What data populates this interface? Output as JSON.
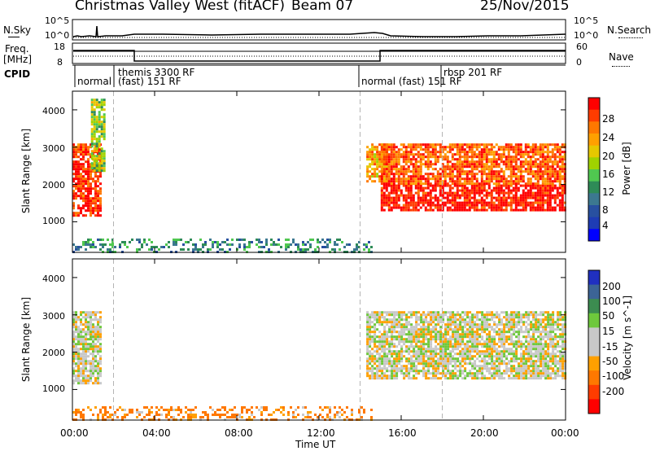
{
  "header": {
    "station": "Christmas Valley West (fitACF)",
    "beam": "Beam 07",
    "date": "25/Nov/2015"
  },
  "top_panels": {
    "nsky_label": "N.Sky",
    "nsearch_label": "N.Search",
    "noise_ticks_left": [
      "10^5",
      "10^0"
    ],
    "noise_ticks_right": [
      "10^5",
      "10^0"
    ],
    "freq_label_1": "Freq.",
    "freq_label_2": "[MHz]",
    "freq_ticks": [
      "18",
      "8"
    ],
    "nave_ticks": [
      "60",
      "0"
    ],
    "nave_label": "Nave",
    "cpid_label": "CPID",
    "cpid_segments": [
      {
        "text": "normal",
        "pos": "a"
      },
      {
        "text": "themis 3300 RF",
        "pos": "b"
      },
      {
        "text": "(fast) 151 RF",
        "pos": "c"
      },
      {
        "text": "normal (fast) 151 RF",
        "pos": "d"
      },
      {
        "text": "rbsp 201 RF",
        "pos": "e"
      }
    ]
  },
  "axes": {
    "ylabel": "Slant Range [km]",
    "xlabel": "Time UT",
    "y_ticks": [
      "4000",
      "3000",
      "2000",
      "1000"
    ],
    "x_ticks": [
      "00:00",
      "04:00",
      "08:00",
      "12:00",
      "16:00",
      "20:00",
      "00:00"
    ]
  },
  "power_colorbar": {
    "label": "Power [dB]",
    "ticks": [
      "28",
      "24",
      "20",
      "16",
      "12",
      "8",
      "4"
    ],
    "colors": [
      "#ff0000",
      "#ff3c00",
      "#ff7800",
      "#ffa000",
      "#e6c800",
      "#a0d200",
      "#50c850",
      "#2e8b57",
      "#3c7890",
      "#2850a0",
      "#1e3cb4",
      "#0000ff"
    ]
  },
  "velocity_colorbar": {
    "label": "Velocity [m s^-1]",
    "ticks": [
      "200",
      "100",
      "50",
      "15",
      "-15",
      "-50",
      "-100",
      "-200"
    ],
    "colors": [
      "#2030c0",
      "#3c6496",
      "#3c8c50",
      "#6ec83c",
      "#c8c8c8",
      "#c8c8c8",
      "#ffa000",
      "#ff7800",
      "#ff3c00",
      "#ff0000"
    ]
  },
  "chart_data": {
    "type": "heatmap",
    "title": "Christmas Valley West (fitACF) Beam 07 25/Nov/2015",
    "xlabel": "Time UT",
    "ylabel": "Slant Range [km]",
    "x_range_hours": [
      0,
      24
    ],
    "ylim": [
      180,
      4500
    ],
    "dashed_marker_hours": [
      2,
      14,
      18
    ],
    "panels": [
      {
        "name": "Power [dB]",
        "colorbar_range": [
          0,
          30
        ],
        "regions": [
          {
            "t": [
              0.0,
              1.4
            ],
            "range": [
              1200,
              3100
            ],
            "value_db": 28
          },
          {
            "t": [
              0.9,
              1.5
            ],
            "range": [
              2400,
              4300
            ],
            "value_db": 16
          },
          {
            "t": [
              14.3,
              15.3
            ],
            "range": [
              2100,
              3100
            ],
            "value_db": 22
          },
          {
            "t": [
              15.0,
              24.0
            ],
            "range": [
              1300,
              2000
            ],
            "value_db": 30
          },
          {
            "t": [
              15.0,
              24.0
            ],
            "range": [
              2000,
              3100
            ],
            "value_db": 26
          },
          {
            "t": [
              0.0,
              14.5
            ],
            "range": [
              200,
              550
            ],
            "value_db": 10
          }
        ]
      },
      {
        "name": "Velocity [m s^-1]",
        "colorbar_range": [
          -250,
          250
        ],
        "regions": [
          {
            "t": [
              0.0,
              1.4
            ],
            "range": [
              1200,
              3100
            ],
            "value_ms": 0
          },
          {
            "t": [
              14.3,
              24.0
            ],
            "range": [
              1300,
              3100
            ],
            "value_ms": 0
          },
          {
            "t": [
              0.0,
              14.5
            ],
            "range": [
              200,
              550
            ],
            "value_ms": -40
          }
        ]
      }
    ],
    "nave_step": {
      "t": [
        3,
        15
      ],
      "nave_level": "low"
    },
    "freq_level": "constant"
  }
}
